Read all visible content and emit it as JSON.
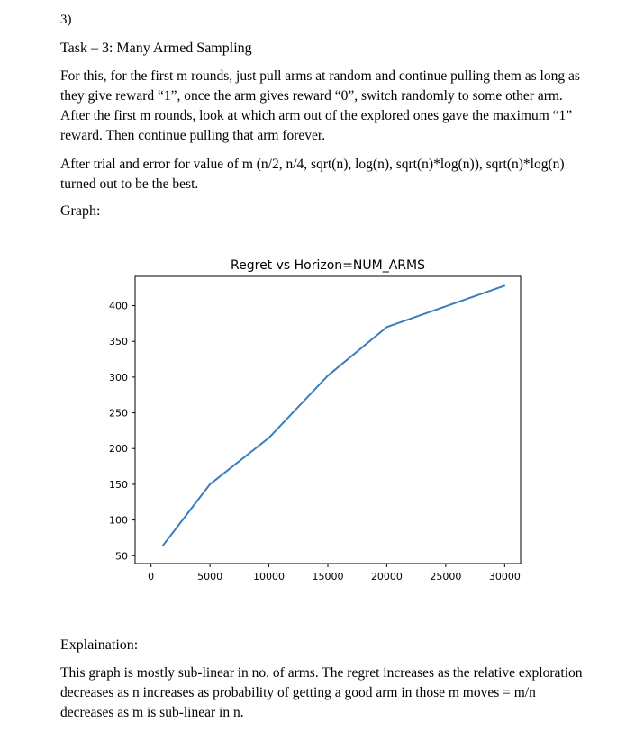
{
  "section_number": "3)",
  "task_title": "Task – 3: Many Armed Sampling",
  "paragraph1": "For this, for the first m rounds, just pull arms at random and continue pulling them as long as they give reward “1”, once the arm gives reward “0”, switch randomly to some other arm. After the first m rounds, look at which arm out of the explored ones gave the maximum “1” reward. Then continue pulling that arm forever.",
  "paragraph2": "After trial and error for value of m (n/2, n/4, sqrt(n), log(n), sqrt(n)*log(n)), sqrt(n)*log(n) turned out to be the best.",
  "graph_label": "Graph:",
  "explanation_title": "Explaination:",
  "explanation_text": "This graph is mostly sub-linear in no. of arms. The regret increases as the relative exploration decreases as n increases as probability of getting a good arm in those m moves = m/n decreases as m is sub-linear in n.",
  "chart_data": {
    "type": "line",
    "title": "Regret vs Horizon=NUM_ARMS",
    "xlabel": "",
    "ylabel": "",
    "x": [
      1000,
      5000,
      10000,
      15000,
      20000,
      30000
    ],
    "series": [
      {
        "values": [
          64,
          150,
          215,
          302,
          370,
          428
        ]
      }
    ],
    "xlim": [
      -1350,
      31350
    ],
    "ylim": [
      39,
      441
    ],
    "xticks": [
      0,
      5000,
      10000,
      15000,
      20000,
      25000,
      30000
    ],
    "yticks": [
      50,
      100,
      150,
      200,
      250,
      300,
      350,
      400
    ],
    "line_color": "#3a7ebf",
    "grid": false
  }
}
